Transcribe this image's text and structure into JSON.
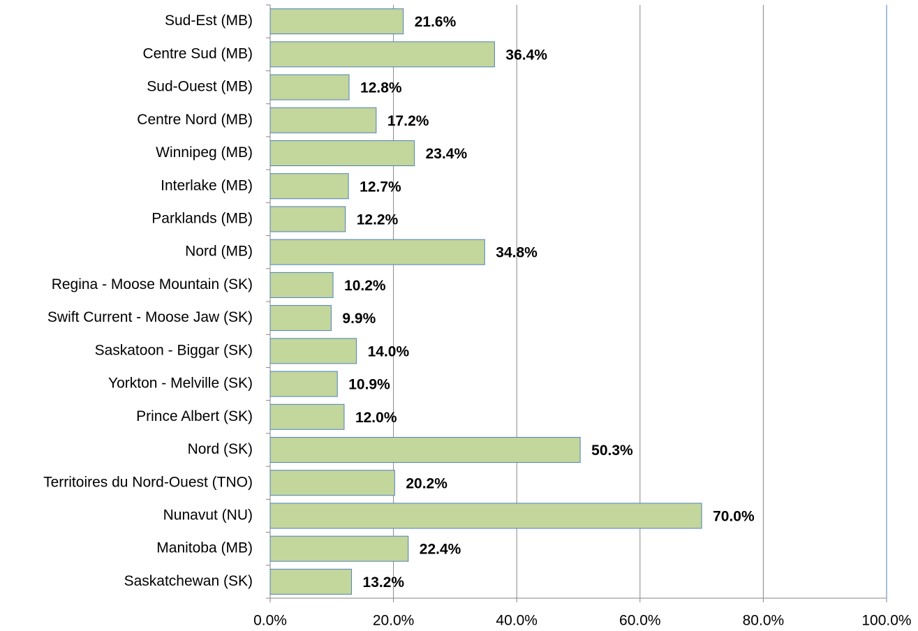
{
  "chart_data": {
    "type": "bar",
    "orientation": "horizontal",
    "categories": [
      "Sud-Est (MB)",
      "Centre Sud (MB)",
      "Sud-Ouest (MB)",
      "Centre Nord (MB)",
      "Winnipeg (MB)",
      "Interlake (MB)",
      "Parklands (MB)",
      "Nord (MB)",
      "Regina - Moose Mountain (SK)",
      "Swift Current - Moose Jaw (SK)",
      "Saskatoon - Biggar (SK)",
      "Yorkton - Melville (SK)",
      "Prince Albert (SK)",
      "Nord (SK)",
      "Territoires du Nord-Ouest (TNO)",
      "Nunavut (NU)",
      "Manitoba (MB)",
      "Saskatchewan (SK)"
    ],
    "values": [
      21.6,
      36.4,
      12.8,
      17.2,
      23.4,
      12.7,
      12.2,
      34.8,
      10.2,
      9.9,
      14.0,
      10.9,
      12.0,
      50.3,
      20.2,
      70.0,
      22.4,
      13.2
    ],
    "value_labels": [
      "21.6%",
      "36.4%",
      "12.8%",
      "17.2%",
      "23.4%",
      "12.7%",
      "12.2%",
      "34.8%",
      "10.2%",
      "9.9%",
      "14.0%",
      "10.9%",
      "12.0%",
      "50.3%",
      "20.2%",
      "70.0%",
      "22.4%",
      "13.2%"
    ],
    "color": "#c3d69b",
    "xlim": [
      0,
      100
    ],
    "xticks": [
      {
        "value": 0,
        "label": "0.0%"
      },
      {
        "value": 20,
        "label": "20.0%"
      },
      {
        "value": 40,
        "label": "40.0%"
      },
      {
        "value": 60,
        "label": "60.0%"
      },
      {
        "value": 80,
        "label": "80.0%"
      },
      {
        "value": 100,
        "label": "100.0%"
      }
    ],
    "grid": true
  }
}
